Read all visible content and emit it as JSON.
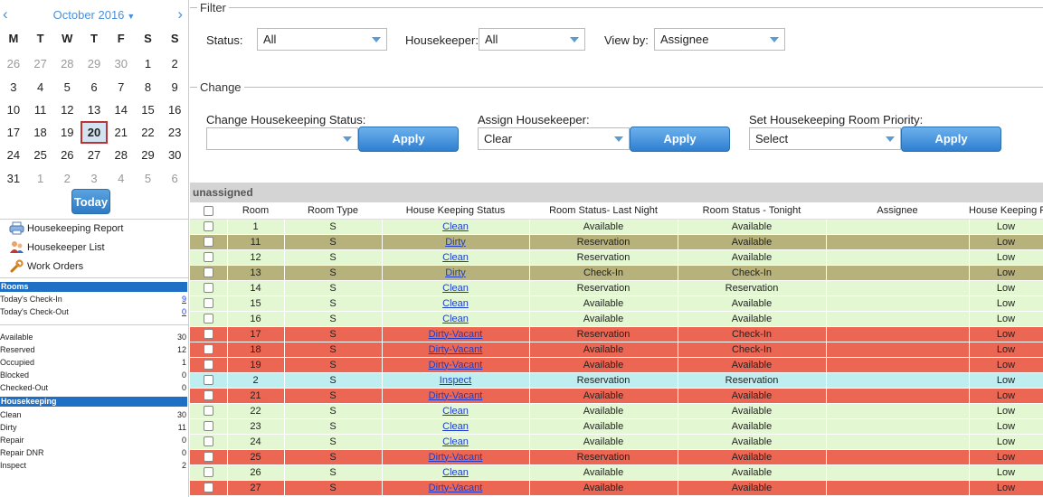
{
  "calendar": {
    "prev_icon": "‹",
    "next_icon": "›",
    "month_label": "October 2016",
    "month_caret": "▼",
    "day_headers": [
      "M",
      "T",
      "W",
      "T",
      "F",
      "S",
      "S"
    ],
    "weeks": [
      [
        {
          "d": "26",
          "m": true
        },
        {
          "d": "27",
          "m": true
        },
        {
          "d": "28",
          "m": true
        },
        {
          "d": "29",
          "m": true
        },
        {
          "d": "30",
          "m": true
        },
        {
          "d": "1"
        },
        {
          "d": "2"
        }
      ],
      [
        {
          "d": "3"
        },
        {
          "d": "4"
        },
        {
          "d": "5"
        },
        {
          "d": "6"
        },
        {
          "d": "7"
        },
        {
          "d": "8"
        },
        {
          "d": "9"
        }
      ],
      [
        {
          "d": "10"
        },
        {
          "d": "11"
        },
        {
          "d": "12"
        },
        {
          "d": "13"
        },
        {
          "d": "14"
        },
        {
          "d": "15"
        },
        {
          "d": "16"
        }
      ],
      [
        {
          "d": "17"
        },
        {
          "d": "18"
        },
        {
          "d": "19"
        },
        {
          "d": "20",
          "today": true
        },
        {
          "d": "21"
        },
        {
          "d": "22"
        },
        {
          "d": "23"
        }
      ],
      [
        {
          "d": "24"
        },
        {
          "d": "25"
        },
        {
          "d": "26"
        },
        {
          "d": "27"
        },
        {
          "d": "28"
        },
        {
          "d": "29"
        },
        {
          "d": "30"
        }
      ],
      [
        {
          "d": "31"
        },
        {
          "d": "1",
          "m": true
        },
        {
          "d": "2",
          "m": true
        },
        {
          "d": "3",
          "m": true
        },
        {
          "d": "4",
          "m": true
        },
        {
          "d": "5",
          "m": true
        },
        {
          "d": "6",
          "m": true
        }
      ]
    ],
    "today_button": "Today"
  },
  "nav": {
    "housekeeping_report": "Housekeeping Report",
    "housekeeper_list": "Housekeeper List",
    "work_orders": "Work Orders",
    "icons": [
      "printer-icon",
      "users-icon",
      "wrench-icon"
    ]
  },
  "rooms_summary": {
    "title": "Rooms",
    "checkin_label": "Today's Check-In",
    "checkin_value": "9",
    "checkout_label": "Today's Check-Out",
    "checkout_value": "0",
    "stats": [
      {
        "label": "Available",
        "value": "30"
      },
      {
        "label": "Reserved",
        "value": "12"
      },
      {
        "label": "Occupied",
        "value": "1"
      },
      {
        "label": "Blocked",
        "value": "0"
      },
      {
        "label": "Checked-Out",
        "value": "0"
      }
    ]
  },
  "housekeeping_summary": {
    "title": "Housekeeping",
    "stats": [
      {
        "label": "Clean",
        "value": "30"
      },
      {
        "label": "Dirty",
        "value": "11"
      },
      {
        "label": "Repair",
        "value": "0"
      },
      {
        "label": "Repair DNR",
        "value": "0"
      },
      {
        "label": "Inspect",
        "value": "2"
      }
    ]
  },
  "filter": {
    "legend": "Filter",
    "status_label": "Status:",
    "status_value": "All",
    "housekeeper_label": "Housekeeper:",
    "housekeeper_value": "All",
    "viewby_label": "View by:",
    "viewby_value": "Assignee"
  },
  "change": {
    "legend": "Change",
    "hk_status_label": "Change Housekeeping Status:",
    "hk_status_value": "",
    "assign_label": "Assign Housekeeper:",
    "assign_value": "Clear",
    "priority_label": "Set Housekeeping Room Priority:",
    "priority_value": "Select",
    "apply_label": "Apply"
  },
  "group": {
    "label": "unassigned"
  },
  "table": {
    "headers": [
      "",
      "Room",
      "Room Type",
      "House Keeping Status",
      "Room Status- Last Night",
      "Room Status - Tonight",
      "Assignee",
      "House Keeping P"
    ],
    "colors": {
      "green": "#e3f7d2",
      "olive": "#b7b27c",
      "red": "#ec6654",
      "blue": "#bfeef0"
    },
    "rows": [
      {
        "room": "1",
        "type": "S",
        "hk": "Clean",
        "last": "Available",
        "tonight": "Available",
        "assignee": "",
        "priority": "Low",
        "color": "green"
      },
      {
        "room": "11",
        "type": "S",
        "hk": "Dirty",
        "last": "Reservation",
        "tonight": "Available",
        "assignee": "",
        "priority": "Low",
        "color": "olive"
      },
      {
        "room": "12",
        "type": "S",
        "hk": "Clean",
        "last": "Reservation",
        "tonight": "Available",
        "assignee": "",
        "priority": "Low",
        "color": "green"
      },
      {
        "room": "13",
        "type": "S",
        "hk": "Dirty",
        "last": "Check-In",
        "tonight": "Check-In",
        "assignee": "",
        "priority": "Low",
        "color": "olive"
      },
      {
        "room": "14",
        "type": "S",
        "hk": "Clean",
        "last": "Reservation",
        "tonight": "Reservation",
        "assignee": "",
        "priority": "Low",
        "color": "green"
      },
      {
        "room": "15",
        "type": "S",
        "hk": "Clean",
        "last": "Available",
        "tonight": "Available",
        "assignee": "",
        "priority": "Low",
        "color": "green"
      },
      {
        "room": "16",
        "type": "S",
        "hk": "Clean",
        "last": "Available",
        "tonight": "Available",
        "assignee": "",
        "priority": "Low",
        "color": "green"
      },
      {
        "room": "17",
        "type": "S",
        "hk": "Dirty-Vacant",
        "last": "Reservation",
        "tonight": "Check-In",
        "assignee": "",
        "priority": "Low",
        "color": "red"
      },
      {
        "room": "18",
        "type": "S",
        "hk": "Dirty-Vacant",
        "last": "Available",
        "tonight": "Check-In",
        "assignee": "",
        "priority": "Low",
        "color": "red"
      },
      {
        "room": "19",
        "type": "S",
        "hk": "Dirty-Vacant",
        "last": "Available",
        "tonight": "Available",
        "assignee": "",
        "priority": "Low",
        "color": "red"
      },
      {
        "room": "2",
        "type": "S",
        "hk": "Inspect",
        "last": "Reservation",
        "tonight": "Reservation",
        "assignee": "",
        "priority": "Low",
        "color": "blue"
      },
      {
        "room": "21",
        "type": "S",
        "hk": "Dirty-Vacant",
        "last": "Available",
        "tonight": "Available",
        "assignee": "",
        "priority": "Low",
        "color": "red"
      },
      {
        "room": "22",
        "type": "S",
        "hk": "Clean",
        "last": "Available",
        "tonight": "Available",
        "assignee": "",
        "priority": "Low",
        "color": "green"
      },
      {
        "room": "23",
        "type": "S",
        "hk": "Clean",
        "last": "Available",
        "tonight": "Available",
        "assignee": "",
        "priority": "Low",
        "color": "green"
      },
      {
        "room": "24",
        "type": "S",
        "hk": "Clean",
        "last": "Available",
        "tonight": "Available",
        "assignee": "",
        "priority": "Low",
        "color": "green"
      },
      {
        "room": "25",
        "type": "S",
        "hk": "Dirty-Vacant",
        "last": "Reservation",
        "tonight": "Available",
        "assignee": "",
        "priority": "Low",
        "color": "red"
      },
      {
        "room": "26",
        "type": "S",
        "hk": "Clean",
        "last": "Available",
        "tonight": "Available",
        "assignee": "",
        "priority": "Low",
        "color": "green"
      },
      {
        "room": "27",
        "type": "S",
        "hk": "Dirty-Vacant",
        "last": "Available",
        "tonight": "Available",
        "assignee": "",
        "priority": "Low",
        "color": "red"
      }
    ]
  }
}
